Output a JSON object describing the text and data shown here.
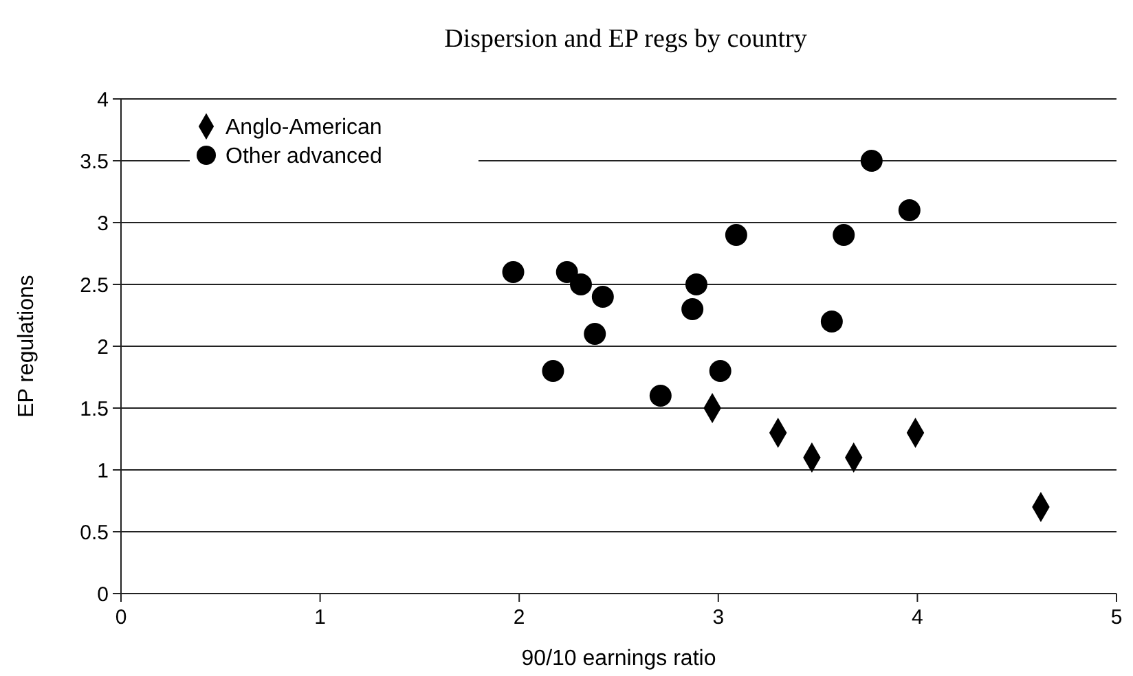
{
  "chart_data": {
    "type": "scatter",
    "title": "Dispersion and EP regs by country",
    "xlabel": "90/10 earnings ratio",
    "ylabel": "EP regulations",
    "xlim": [
      0,
      5
    ],
    "xticks": [
      0,
      1,
      2,
      3,
      4,
      5
    ],
    "ylim": [
      0,
      4
    ],
    "yticks": [
      0,
      0.5,
      1,
      1.5,
      2,
      2.5,
      3,
      3.5,
      4
    ],
    "grid": "y",
    "legend": "top left",
    "series": [
      {
        "name": "Anglo-American",
        "color": "#000000",
        "marker": "diamond",
        "x": [
          2.97,
          3.3,
          3.47,
          3.68,
          3.99,
          4.62
        ],
        "values": [
          1.5,
          1.3,
          1.1,
          1.1,
          1.3,
          0.7
        ]
      },
      {
        "name": "Other advanced",
        "color": "#000000",
        "marker": "circle",
        "x": [
          1.97,
          2.24,
          2.31,
          2.42,
          2.38,
          2.17,
          2.71,
          2.89,
          2.87,
          3.01,
          3.09,
          3.57,
          3.63,
          3.77,
          3.96
        ],
        "values": [
          2.6,
          2.6,
          2.5,
          2.4,
          2.1,
          1.8,
          1.6,
          2.5,
          2.3,
          1.8,
          2.9,
          2.2,
          2.9,
          3.5,
          3.1
        ]
      }
    ]
  }
}
